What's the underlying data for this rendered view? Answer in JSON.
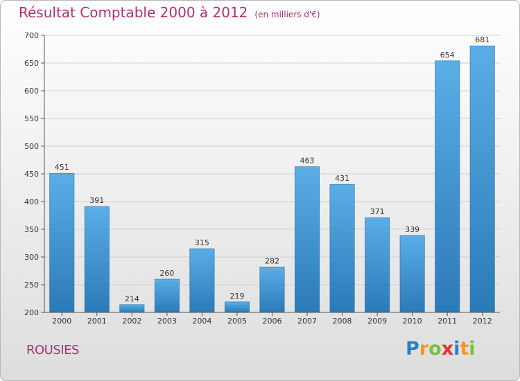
{
  "header": {
    "title": "Résultat Comptable 2000 à 2012",
    "subtitle": "(en milliers d'€)"
  },
  "commune": "ROUSIES",
  "brand": {
    "letters": [
      {
        "ch": "P",
        "color": "#2b7fc4"
      },
      {
        "ch": "r",
        "color": "#f39a1c"
      },
      {
        "ch": "o",
        "color": "#7bbf3a"
      },
      {
        "ch": "x",
        "color": "#e8312d"
      },
      {
        "ch": "i",
        "color": "#2b7fc4"
      },
      {
        "ch": "t",
        "color": "#f39a1c"
      },
      {
        "ch": "i",
        "color": "#7bbf3a"
      }
    ]
  },
  "chart_data": {
    "type": "bar",
    "categories": [
      "2000",
      "2001",
      "2002",
      "2003",
      "2004",
      "2005",
      "2006",
      "2007",
      "2008",
      "2009",
      "2010",
      "2011",
      "2012"
    ],
    "values": [
      451,
      391,
      214,
      260,
      315,
      219,
      282,
      463,
      431,
      371,
      339,
      654,
      681
    ],
    "ylim": [
      200,
      700
    ],
    "yticks": [
      200,
      250,
      300,
      350,
      400,
      450,
      500,
      550,
      600,
      650,
      700
    ],
    "grid": true,
    "bar_color_top": "#5aaee6",
    "bar_color_bottom": "#2a7ab8",
    "title": "Résultat Comptable 2000 à 2012",
    "subtitle": "(en milliers d'€)"
  }
}
